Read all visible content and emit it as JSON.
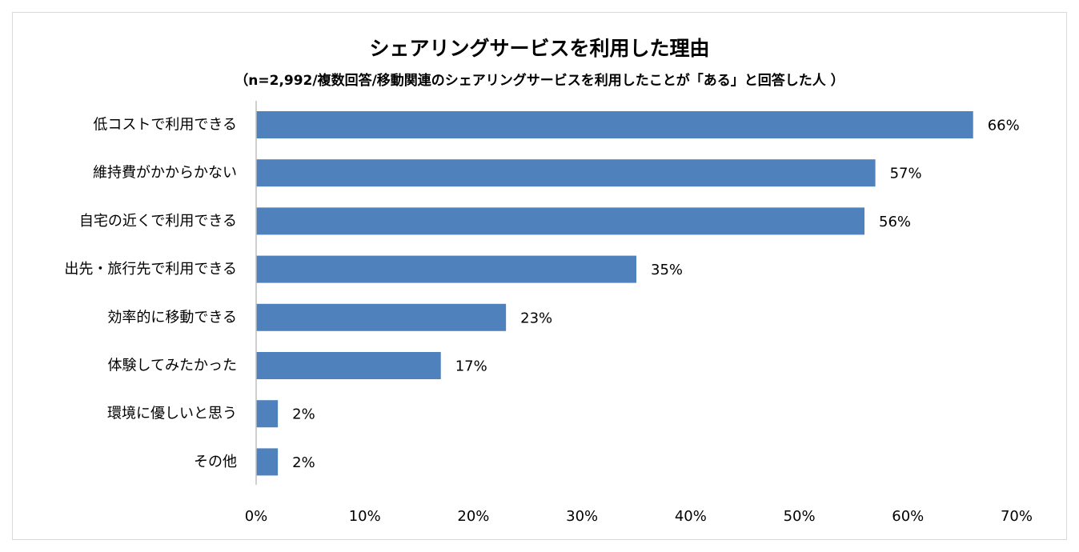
{
  "chart_data": {
    "type": "bar",
    "orientation": "horizontal",
    "title": "シェアリングサービスを利用した理由",
    "subtitle": "（n=2,992/複数回答/移動関連のシェアリングサービスを利用したことが「ある」と回答した人 ）",
    "categories": [
      "低コストで利用できる",
      "維持費がかからかない",
      "自宅の近くで利用できる",
      "出先・旅行先で利用できる",
      "効率的に移動できる",
      "体験してみたかった",
      "環境に優しいと思う",
      "その他"
    ],
    "values": [
      66,
      57,
      56,
      35,
      23,
      17,
      2,
      2
    ],
    "value_labels": [
      "66%",
      "57%",
      "56%",
      "35%",
      "23%",
      "17%",
      "2%",
      "2%"
    ],
    "xlim": [
      0,
      70
    ],
    "xticks": [
      0,
      10,
      20,
      30,
      40,
      50,
      60,
      70
    ],
    "xtick_labels": [
      "0%",
      "10%",
      "20%",
      "30%",
      "40%",
      "50%",
      "60%",
      "70%"
    ],
    "xlabel": "",
    "ylabel": "",
    "grid": false,
    "legend": "none",
    "bar_color": "#4f81bd"
  }
}
